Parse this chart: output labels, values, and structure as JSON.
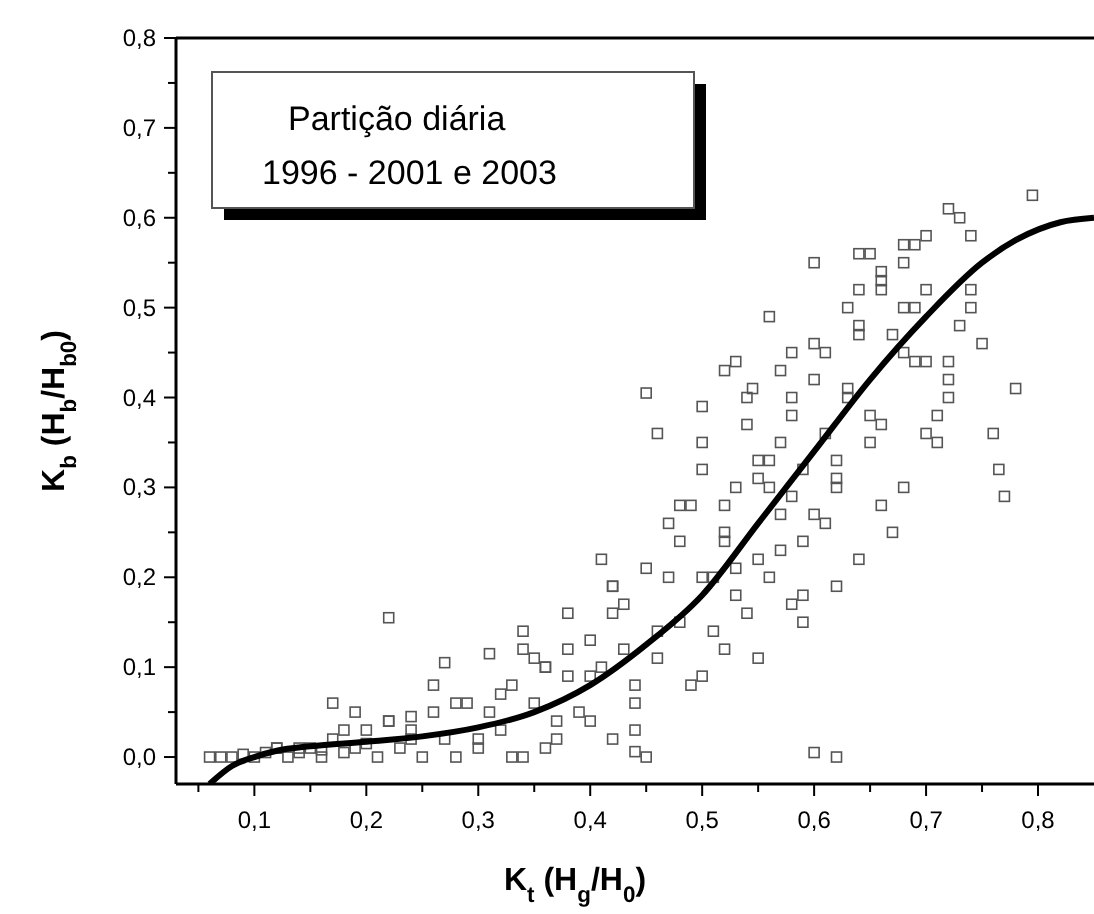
{
  "chart_data": {
    "type": "scatter",
    "xlabel": "K$_{t}$ (H$_{g}$/H$_{0}$)",
    "ylabel": "K$_{b}$ (H$_{b}$/H$_{b0}$)",
    "annotations": [
      "Partição diária",
      "1996 - 2001 e 2003"
    ],
    "xlim": [
      0.03,
      0.85
    ],
    "ylim": [
      -0.03,
      0.8
    ],
    "xticks": [
      {
        "value": 0.05,
        "label": null
      },
      {
        "value": 0.1,
        "label": "0,1"
      },
      {
        "value": 0.15,
        "label": null
      },
      {
        "value": 0.2,
        "label": "0,2"
      },
      {
        "value": 0.25,
        "label": null
      },
      {
        "value": 0.3,
        "label": "0,3"
      },
      {
        "value": 0.35,
        "label": null
      },
      {
        "value": 0.4,
        "label": "0,4"
      },
      {
        "value": 0.45,
        "label": null
      },
      {
        "value": 0.5,
        "label": "0,5"
      },
      {
        "value": 0.55,
        "label": null
      },
      {
        "value": 0.6,
        "label": "0,6"
      },
      {
        "value": 0.65,
        "label": null
      },
      {
        "value": 0.7,
        "label": "0,7"
      },
      {
        "value": 0.75,
        "label": null
      },
      {
        "value": 0.8,
        "label": "0,8"
      }
    ],
    "yticks": [
      {
        "value": 0,
        "label": "0,0"
      },
      {
        "value": 0.05,
        "label": null
      },
      {
        "value": 0.1,
        "label": "0,1"
      },
      {
        "value": 0.15,
        "label": null
      },
      {
        "value": 0.2,
        "label": "0,2"
      },
      {
        "value": 0.25,
        "label": null
      },
      {
        "value": 0.3,
        "label": "0,3"
      },
      {
        "value": 0.35,
        "label": null
      },
      {
        "value": 0.4,
        "label": "0,4"
      },
      {
        "value": 0.45,
        "label": null
      },
      {
        "value": 0.5,
        "label": "0,5"
      },
      {
        "value": 0.55,
        "label": null
      },
      {
        "value": 0.6,
        "label": "0,6"
      },
      {
        "value": 0.65,
        "label": null
      },
      {
        "value": 0.7,
        "label": "0,7"
      },
      {
        "value": 0.75,
        "label": null
      },
      {
        "value": 0.8,
        "label": "0,8"
      }
    ],
    "grid": false,
    "series": [
      {
        "marker": "square",
        "color": "#555555",
        "x": [
          0.06,
          0.07,
          0.08,
          0.09,
          0.1,
          0.11,
          0.12,
          0.13,
          0.14,
          0.15,
          0.16,
          0.17,
          0.18,
          0.19,
          0.2,
          0.21,
          0.22,
          0.23,
          0.24,
          0.25,
          0.26,
          0.27,
          0.28,
          0.17,
          0.19,
          0.22,
          0.24,
          0.27,
          0.29,
          0.3,
          0.31,
          0.32,
          0.33,
          0.34,
          0.35,
          0.36,
          0.37,
          0.38,
          0.31,
          0.33,
          0.35,
          0.37,
          0.3,
          0.32,
          0.34,
          0.36,
          0.38,
          0.39,
          0.4,
          0.41,
          0.42,
          0.43,
          0.44,
          0.45,
          0.46,
          0.47,
          0.4,
          0.41,
          0.43,
          0.44,
          0.42,
          0.45,
          0.47,
          0.38,
          0.4,
          0.42,
          0.44,
          0.46,
          0.48,
          0.49,
          0.5,
          0.51,
          0.52,
          0.53,
          0.54,
          0.55,
          0.48,
          0.5,
          0.52,
          0.54,
          0.56,
          0.49,
          0.51,
          0.53,
          0.55,
          0.57,
          0.5,
          0.52,
          0.53,
          0.55,
          0.56,
          0.58,
          0.59,
          0.6,
          0.61,
          0.62,
          0.63,
          0.64,
          0.65,
          0.57,
          0.59,
          0.61,
          0.63,
          0.58,
          0.6,
          0.62,
          0.64,
          0.66,
          0.6,
          0.62,
          0.64,
          0.66,
          0.68,
          0.65,
          0.67,
          0.69,
          0.71,
          0.73,
          0.66,
          0.68,
          0.7,
          0.72,
          0.74,
          0.69,
          0.71,
          0.73,
          0.75,
          0.68,
          0.7,
          0.72,
          0.74,
          0.76,
          0.72,
          0.74,
          0.765,
          0.77,
          0.78,
          0.795,
          0.53,
          0.52,
          0.545,
          0.5,
          0.45,
          0.44,
          0.62,
          0.6,
          0.58,
          0.57,
          0.59,
          0.55,
          0.56,
          0.57,
          0.58,
          0.59,
          0.6,
          0.61,
          0.62,
          0.63,
          0.64,
          0.65,
          0.66,
          0.67,
          0.68,
          0.69,
          0.7,
          0.64,
          0.66,
          0.68,
          0.7,
          0.72,
          0.54,
          0.56,
          0.58,
          0.5,
          0.48,
          0.46,
          0.52,
          0.42,
          0.36,
          0.34,
          0.28,
          0.26,
          0.22,
          0.18,
          0.14,
          0.2,
          0.12,
          0.16,
          0.24
        ],
        "values": [
          0.0,
          0.0,
          0.0,
          0.003,
          0.0,
          0.005,
          0.01,
          0.0,
          0.005,
          0.01,
          0.0,
          0.02,
          0.005,
          0.05,
          0.03,
          0.0,
          0.04,
          0.01,
          0.03,
          0.0,
          0.05,
          0.02,
          0.0,
          0.06,
          0.01,
          0.155,
          0.045,
          0.105,
          0.06,
          0.01,
          0.115,
          0.03,
          0.08,
          0.0,
          0.06,
          0.1,
          0.02,
          0.09,
          0.05,
          0.0,
          0.11,
          0.04,
          0.02,
          0.07,
          0.12,
          0.01,
          0.16,
          0.05,
          0.13,
          0.1,
          0.02,
          0.17,
          0.08,
          0.0,
          0.14,
          0.2,
          0.09,
          0.22,
          0.12,
          0.03,
          0.16,
          0.21,
          0.26,
          0.12,
          0.04,
          0.19,
          0.06,
          0.11,
          0.15,
          0.28,
          0.09,
          0.2,
          0.12,
          0.3,
          0.16,
          0.22,
          0.24,
          0.32,
          0.25,
          0.37,
          0.3,
          0.08,
          0.14,
          0.18,
          0.11,
          0.27,
          0.35,
          0.28,
          0.21,
          0.33,
          0.2,
          0.4,
          0.24,
          0.46,
          0.36,
          0.3,
          0.41,
          0.22,
          0.38,
          0.43,
          0.15,
          0.26,
          0.5,
          0.29,
          0.55,
          0.33,
          0.47,
          0.28,
          0.42,
          0.19,
          0.52,
          0.37,
          0.45,
          0.56,
          0.25,
          0.5,
          0.35,
          0.48,
          0.54,
          0.3,
          0.58,
          0.42,
          0.52,
          0.57,
          0.38,
          0.6,
          0.46,
          0.55,
          0.44,
          0.61,
          0.5,
          0.36,
          0.4,
          0.58,
          0.32,
          0.29,
          0.41,
          0.625,
          0.44,
          0.43,
          0.41,
          0.39,
          0.405,
          0.006,
          0.0,
          0.005,
          0.17,
          0.23,
          0.18,
          0.31,
          0.33,
          0.35,
          0.38,
          0.32,
          0.27,
          0.45,
          0.31,
          0.4,
          0.48,
          0.35,
          0.52,
          0.47,
          0.5,
          0.44,
          0.52,
          0.56,
          0.53,
          0.57,
          0.36,
          0.44,
          0.4,
          0.49,
          0.45,
          0.2,
          0.28,
          0.36,
          0.24,
          0.19,
          0.1,
          0.14,
          0.06,
          0.08,
          0.04,
          0.03,
          0.01,
          0.015,
          0.01,
          0.008,
          0.02
        ]
      },
      {
        "type": "line",
        "color": "#000000",
        "line_style": "solid",
        "x": [
          0.06,
          0.08,
          0.1,
          0.12,
          0.15,
          0.2,
          0.25,
          0.3,
          0.35,
          0.4,
          0.45,
          0.5,
          0.55,
          0.6,
          0.65,
          0.7,
          0.75,
          0.78,
          0.82,
          0.85
        ],
        "values": [
          -0.03,
          -0.01,
          0.0,
          0.007,
          0.012,
          0.017,
          0.023,
          0.033,
          0.05,
          0.08,
          0.125,
          0.18,
          0.26,
          0.34,
          0.42,
          0.49,
          0.55,
          0.575,
          0.595,
          0.6
        ]
      }
    ]
  }
}
